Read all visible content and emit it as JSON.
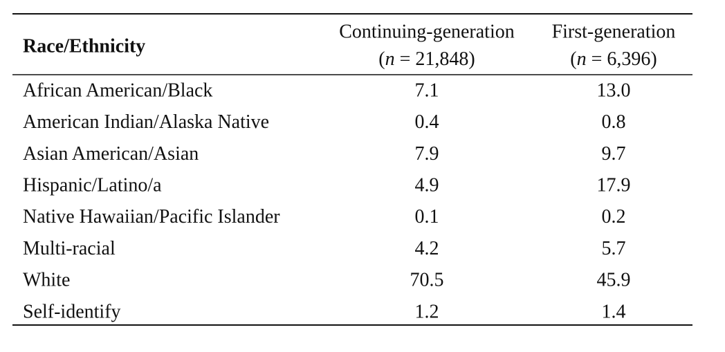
{
  "table": {
    "header": {
      "row_label": "Race/Ethnicity",
      "columns": [
        {
          "title": "Continuing-generation",
          "sample": [
            "(",
            "n",
            " = 21,848)"
          ]
        },
        {
          "title": "First-generation",
          "sample": [
            "(",
            "n",
            " = 6,396)"
          ]
        }
      ]
    },
    "rows": [
      [
        "African American/Black",
        "7.1",
        "13.0"
      ],
      [
        "American Indian/Alaska Native",
        "0.4",
        "0.8"
      ],
      [
        "Asian American/Asian",
        "7.9",
        "9.7"
      ],
      [
        "Hispanic/Latino/a",
        "4.9",
        "17.9"
      ],
      [
        "Native Hawaiian/Pacific Islander",
        "0.1",
        "0.2"
      ],
      [
        "Multi-racial",
        "4.2",
        "5.7"
      ],
      [
        "White",
        "70.5",
        "45.9"
      ],
      [
        "Self-identify",
        "1.2",
        "1.4"
      ]
    ]
  }
}
